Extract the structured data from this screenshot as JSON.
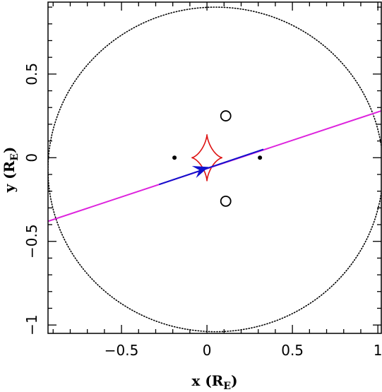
{
  "chart_data": {
    "type": "scatter",
    "title": "",
    "xlabel": {
      "base": "x (R",
      "sub": "E",
      "tail": ")"
    },
    "ylabel": {
      "base": "y (R",
      "sub": "E",
      "tail": ")"
    },
    "xlim": [
      -0.93,
      1.02
    ],
    "ylim": [
      -1.05,
      0.93
    ],
    "x_ticks": [
      {
        "value": -0.5,
        "label": "−0.5"
      },
      {
        "value": 0,
        "label": "0"
      },
      {
        "value": 0.5,
        "label": "0.5"
      },
      {
        "value": 1,
        "label": "1"
      }
    ],
    "y_ticks": [
      {
        "value": -1,
        "label": "−1"
      },
      {
        "value": -0.5,
        "label": "−0.5"
      },
      {
        "value": 0,
        "label": "0"
      },
      {
        "value": 0.5,
        "label": "0.5"
      }
    ],
    "x_minor_step": 0.1,
    "y_minor_step": 0.1,
    "grid": false,
    "colors": {
      "critical_curve": "#000000",
      "caustic": "#dd1111",
      "trajectory": "#dd22dd",
      "trajectory_segment": "#1111cc",
      "lens": "#000000",
      "image": "#000000"
    },
    "critical_curve": {
      "center": [
        0.05,
        -0.07
      ],
      "rx": 0.98,
      "ry": 0.97
    },
    "caustic": {
      "center": [
        0.0,
        0.0
      ],
      "rx": 0.09,
      "ry": 0.14
    },
    "lenses": [
      {
        "x": -0.19,
        "y": 0.0
      },
      {
        "x": 0.31,
        "y": 0.0
      }
    ],
    "images": [
      {
        "x": 0.11,
        "y": 0.25
      },
      {
        "x": 0.11,
        "y": -0.26
      }
    ],
    "trajectory": {
      "start": [
        -0.93,
        -0.38
      ],
      "end": [
        1.02,
        0.28
      ]
    },
    "trajectory_segment": {
      "start": [
        -0.28,
        -0.16
      ],
      "end": [
        0.33,
        0.05
      ]
    },
    "arrow": {
      "tip": [
        0.01,
        -0.055
      ],
      "direction": [
        0.94,
        0.33
      ]
    }
  }
}
